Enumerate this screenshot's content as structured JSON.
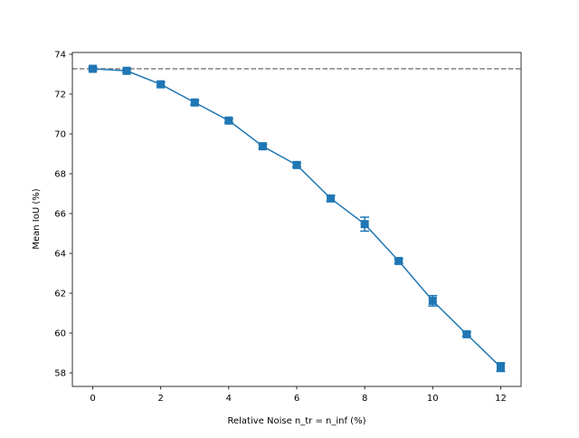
{
  "chart_data": {
    "type": "line",
    "title": "",
    "xlabel": "Relative Noise n_tr = n_inf (%)",
    "ylabel": "Mean IoU (%)",
    "xlim": [
      -0.6,
      12.6
    ],
    "ylim": [
      57.32,
      74.09
    ],
    "xticks": [
      0,
      2,
      4,
      6,
      8,
      10,
      12
    ],
    "yticks": [
      58,
      60,
      62,
      64,
      66,
      68,
      70,
      72,
      74
    ],
    "grid": false,
    "series": [
      {
        "x": [
          0,
          1,
          2,
          3,
          4,
          5,
          6,
          7,
          8,
          9,
          10,
          11,
          12
        ],
        "y": [
          73.27,
          73.17,
          72.49,
          71.58,
          70.67,
          69.38,
          68.44,
          66.76,
          65.47,
          63.62,
          61.62,
          59.94,
          58.29
        ],
        "error": [
          0.08,
          0.08,
          0.1,
          0.12,
          0.1,
          0.1,
          0.1,
          0.15,
          0.35,
          0.12,
          0.26,
          0.1,
          0.22
        ],
        "marker": "square",
        "color": "#1f77b4"
      }
    ],
    "reference_line": {
      "y": 73.27,
      "style": "dashed",
      "color": "#808080"
    }
  }
}
